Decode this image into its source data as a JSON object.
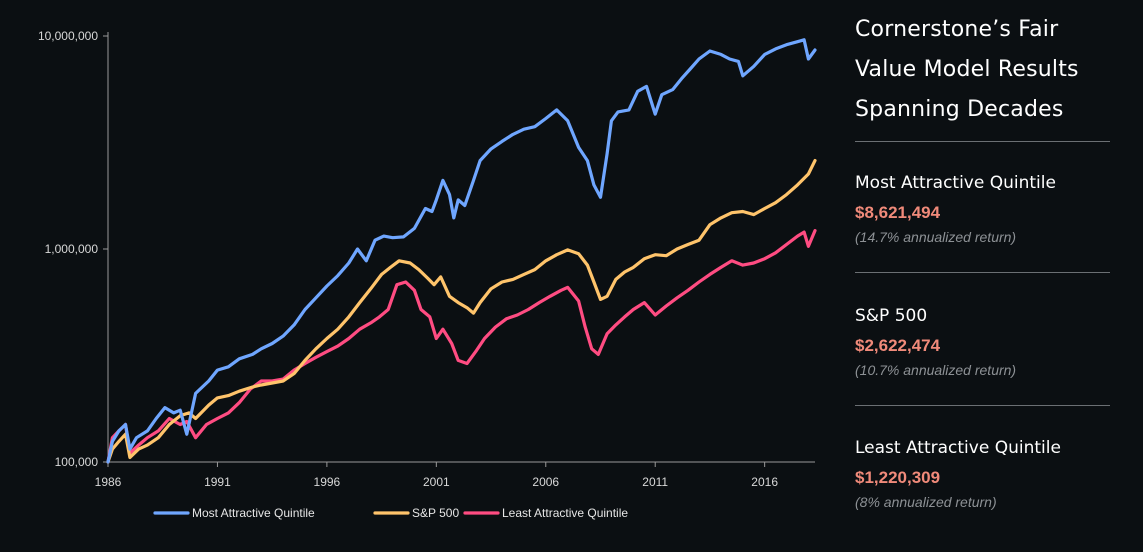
{
  "chart_data": {
    "type": "line",
    "y_scale": "log",
    "ylim": [
      100000,
      10000000
    ],
    "y_ticks": [
      100000,
      1000000,
      10000000
    ],
    "y_tick_labels": [
      "100,000",
      "1,000,000",
      "10,000,000"
    ],
    "xlim": [
      1986,
      2018.3
    ],
    "x_ticks": [
      1986,
      1991,
      1996,
      2001,
      2006,
      2011,
      2016
    ],
    "x_tick_labels": [
      "1986",
      "1991",
      "1996",
      "2001",
      "2006",
      "2011",
      "2016"
    ],
    "grid": false,
    "legend": "bottom",
    "series": [
      {
        "name": "Most Attractive Quintile",
        "color": "#6fa6ff",
        "x": [
          1986,
          1986.2,
          1986.5,
          1986.8,
          1987,
          1987.3,
          1987.8,
          1988.2,
          1988.6,
          1989,
          1989.3,
          1989.6,
          1990,
          1990.6,
          1991,
          1991.5,
          1992,
          1992.6,
          1993,
          1993.5,
          1994,
          1994.5,
          1995,
          1995.5,
          1996,
          1996.5,
          1997,
          1997.4,
          1997.8,
          1998.2,
          1998.6,
          1999,
          1999.5,
          2000,
          2000.5,
          2000.8,
          2001,
          2001.3,
          2001.6,
          2001.8,
          2002,
          2002.3,
          2002.7,
          2003,
          2003.5,
          2004,
          2004.5,
          2005,
          2005.5,
          2006,
          2006.5,
          2007,
          2007.5,
          2007.9,
          2008.2,
          2008.5,
          2008.8,
          2009,
          2009.3,
          2009.8,
          2010.2,
          2010.6,
          2011,
          2011.3,
          2011.8,
          2012.2,
          2012.6,
          2013,
          2013.5,
          2014,
          2014.4,
          2014.8,
          2015,
          2015.5,
          2016,
          2016.5,
          2017,
          2017.5,
          2017.8,
          2018,
          2018.3
        ],
        "y": [
          100000,
          125000,
          140000,
          150000,
          115000,
          130000,
          140000,
          160000,
          180000,
          170000,
          175000,
          135000,
          210000,
          240000,
          270000,
          280000,
          305000,
          320000,
          340000,
          360000,
          390000,
          440000,
          520000,
          590000,
          670000,
          750000,
          860000,
          1000000,
          880000,
          1100000,
          1150000,
          1130000,
          1140000,
          1250000,
          1550000,
          1500000,
          1700000,
          2100000,
          1800000,
          1400000,
          1700000,
          1600000,
          2100000,
          2600000,
          2950000,
          3200000,
          3450000,
          3650000,
          3750000,
          4100000,
          4500000,
          4000000,
          3000000,
          2600000,
          2000000,
          1750000,
          2800000,
          4000000,
          4400000,
          4500000,
          5500000,
          5800000,
          4300000,
          5300000,
          5600000,
          6300000,
          7000000,
          7800000,
          8500000,
          8200000,
          7800000,
          7600000,
          6500000,
          7200000,
          8200000,
          8700000,
          9100000,
          9400000,
          9600000,
          7800000,
          8600000
        ]
      },
      {
        "name": "S&P 500",
        "color": "#ffc46b",
        "x": [
          1986,
          1986.2,
          1986.5,
          1986.8,
          1987,
          1987.4,
          1987.8,
          1988.3,
          1988.8,
          1989.3,
          1989.7,
          1990,
          1990.6,
          1991,
          1991.5,
          1992,
          1992.6,
          1993,
          1993.5,
          1994,
          1994.5,
          1995,
          1995.5,
          1996,
          1996.5,
          1997,
          1997.5,
          1998,
          1998.5,
          1998.9,
          1999.3,
          1999.8,
          2000.2,
          2000.6,
          2000.9,
          2001.2,
          2001.6,
          2002,
          2002.4,
          2002.7,
          2003,
          2003.5,
          2004,
          2004.5,
          2005,
          2005.5,
          2006,
          2006.5,
          2007,
          2007.5,
          2007.9,
          2008.2,
          2008.5,
          2008.8,
          2009.2,
          2009.6,
          2010,
          2010.5,
          2011,
          2011.5,
          2012,
          2012.5,
          2013,
          2013.5,
          2014,
          2014.5,
          2015,
          2015.5,
          2016,
          2016.5,
          2017,
          2017.5,
          2018,
          2018.3
        ],
        "y": [
          100000,
          115000,
          125000,
          135000,
          105000,
          115000,
          120000,
          130000,
          150000,
          165000,
          170000,
          160000,
          185000,
          200000,
          205000,
          215000,
          225000,
          230000,
          235000,
          240000,
          260000,
          300000,
          340000,
          380000,
          420000,
          480000,
          560000,
          650000,
          760000,
          820000,
          880000,
          860000,
          800000,
          730000,
          680000,
          740000,
          600000,
          560000,
          530000,
          500000,
          560000,
          650000,
          700000,
          720000,
          760000,
          800000,
          880000,
          940000,
          990000,
          950000,
          840000,
          700000,
          580000,
          600000,
          720000,
          780000,
          820000,
          900000,
          940000,
          930000,
          1000000,
          1050000,
          1100000,
          1300000,
          1400000,
          1480000,
          1500000,
          1450000,
          1550000,
          1650000,
          1800000,
          2000000,
          2250000,
          2600000
        ]
      },
      {
        "name": "Least Attractive Quintile",
        "color": "#ff4c82",
        "x": [
          1986,
          1986.2,
          1986.5,
          1986.8,
          1987,
          1987.4,
          1987.8,
          1988.3,
          1988.8,
          1989.3,
          1989.6,
          1990,
          1990.5,
          1991,
          1991.5,
          1992,
          1992.5,
          1993,
          1993.5,
          1994,
          1994.5,
          1995,
          1995.5,
          1996,
          1996.5,
          1997,
          1997.5,
          1998,
          1998.4,
          1998.8,
          1999.2,
          1999.6,
          2000,
          2000.3,
          2000.7,
          2001,
          2001.3,
          2001.7,
          2002,
          2002.4,
          2002.8,
          2003.2,
          2003.7,
          2004.2,
          2004.7,
          2005.2,
          2005.7,
          2006.2,
          2006.7,
          2007,
          2007.5,
          2007.8,
          2008.1,
          2008.4,
          2008.8,
          2009.2,
          2009.6,
          2010,
          2010.5,
          2011,
          2011.5,
          2012,
          2012.5,
          2013,
          2013.5,
          2014,
          2014.5,
          2015,
          2015.5,
          2016,
          2016.5,
          2017,
          2017.5,
          2017.8,
          2018,
          2018.3
        ],
        "y": [
          100000,
          130000,
          140000,
          150000,
          110000,
          120000,
          130000,
          140000,
          160000,
          150000,
          155000,
          130000,
          150000,
          160000,
          170000,
          190000,
          220000,
          240000,
          240000,
          245000,
          270000,
          290000,
          310000,
          330000,
          350000,
          380000,
          420000,
          450000,
          480000,
          520000,
          680000,
          700000,
          640000,
          520000,
          480000,
          380000,
          420000,
          360000,
          300000,
          290000,
          330000,
          380000,
          430000,
          470000,
          490000,
          520000,
          560000,
          600000,
          640000,
          660000,
          570000,
          430000,
          340000,
          320000,
          400000,
          440000,
          480000,
          520000,
          560000,
          490000,
          540000,
          590000,
          640000,
          700000,
          760000,
          820000,
          880000,
          840000,
          860000,
          900000,
          960000,
          1050000,
          1150000,
          1200000,
          1030000,
          1220000
        ]
      }
    ]
  },
  "panel": {
    "title_lines": [
      "Cornerstone’s Fair",
      "Value Model Results",
      "Spanning Decades"
    ],
    "value_color": "#f08a7a",
    "blocks": [
      {
        "name": "Most Attractive Quintile",
        "value": "$8,621,494",
        "return": "(14.7% annualized return)"
      },
      {
        "name": "S&P 500",
        "value": "$2,622,474",
        "return": "(10.7% annualized return)"
      },
      {
        "name": "Least Attractive Quintile",
        "value": "$1,220,309",
        "return": "(8% annualized return)"
      }
    ]
  }
}
